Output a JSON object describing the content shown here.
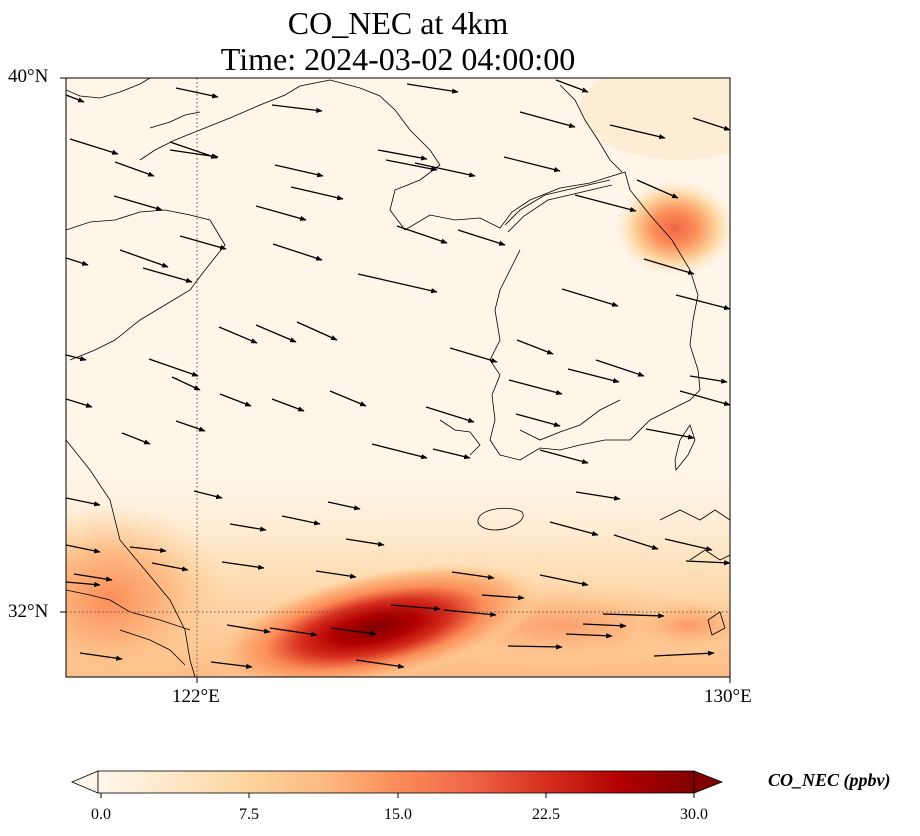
{
  "title": {
    "line1": "CO_NEC at 4km",
    "line2": "Time: 2024-03-02 04:00:00"
  },
  "map": {
    "lat_ticks": [
      "40°N",
      "32°N"
    ],
    "lon_ticks": [
      "122°E",
      "130°E"
    ],
    "gridlines": "dotted",
    "coastline_color": "#000000"
  },
  "colorbar": {
    "label": "CO_NEC (ppbv)",
    "ticks": [
      "0.0",
      "7.5",
      "15.0",
      "22.5",
      "30.0"
    ],
    "range": [
      0,
      30
    ],
    "colormap": "OrRd",
    "colors": [
      "#fff7ec",
      "#fee8c8",
      "#fdd49e",
      "#fdbb84",
      "#fc8d59",
      "#ef6548",
      "#d7301f",
      "#b30000",
      "#7f0000"
    ],
    "extend": "both"
  },
  "field": {
    "max_region": "south-central, near 32°N 124.5°E",
    "secondary_max": "northeast, near 38.5°N 129°E"
  },
  "wind_vectors": {
    "direction": "westerly to west-northwesterly",
    "color": "#000000"
  }
}
